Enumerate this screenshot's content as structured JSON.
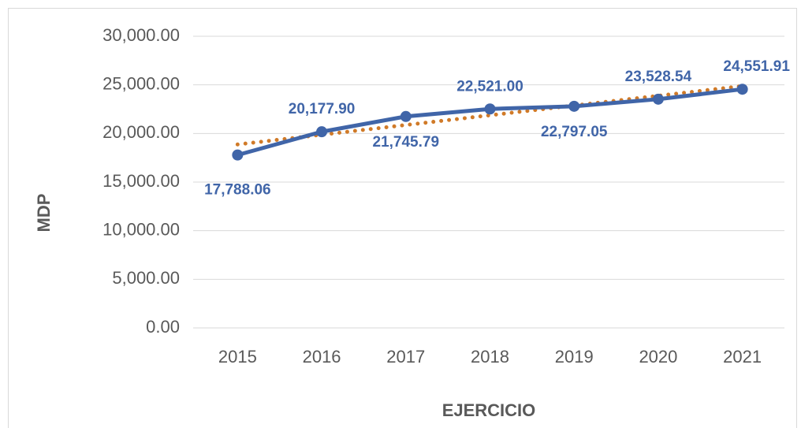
{
  "chart_data": {
    "type": "line",
    "x_label": "EJERCICIO",
    "y_label": "MDP",
    "categories": [
      "2015",
      "2016",
      "2017",
      "2018",
      "2019",
      "2020",
      "2021"
    ],
    "series": [
      {
        "color": "#4065a8",
        "values": [
          17788.06,
          20177.9,
          21745.79,
          22521.0,
          22797.05,
          23528.54,
          24551.91
        ],
        "value_labels": [
          "17,788.06",
          "20,177.90",
          "21,745.79",
          "22,521.00",
          "22,797.05",
          "23,528.54",
          "24,551.91"
        ]
      }
    ],
    "trendline": {
      "color": "#d07a28",
      "style": "dotted",
      "values": [
        18868,
        19870,
        20871,
        21873,
        22875,
        23876,
        24878
      ]
    },
    "ylim": [
      0,
      30000
    ],
    "yticks": [
      {
        "value": 0,
        "label": "0.00"
      },
      {
        "value": 5000,
        "label": "5,000.00"
      },
      {
        "value": 10000,
        "label": "10,000.00"
      },
      {
        "value": 15000,
        "label": "15,000.00"
      },
      {
        "value": 20000,
        "label": "20,000.00"
      },
      {
        "value": 25000,
        "label": "25,000.00"
      },
      {
        "value": 30000,
        "label": "30,000.00"
      }
    ],
    "grid": true
  }
}
